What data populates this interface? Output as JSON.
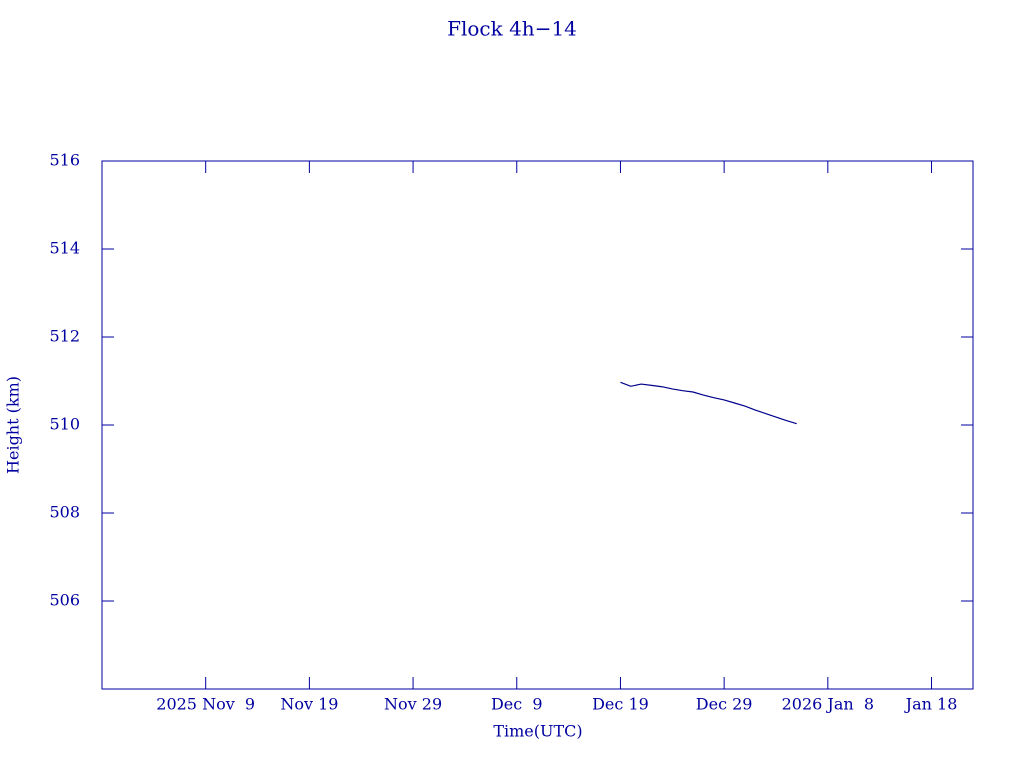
{
  "chart_data": {
    "type": "line",
    "title": "Flock 4h−14",
    "xlabel": "Time(UTC)",
    "ylabel": "Height (km)",
    "x": [
      "2025-12-19",
      "2025-12-20",
      "2025-12-21",
      "2025-12-22",
      "2025-12-23",
      "2025-12-24",
      "2025-12-25",
      "2025-12-26",
      "2025-12-27",
      "2025-12-28",
      "2025-12-29",
      "2025-12-30",
      "2025-12-31",
      "2026-01-01",
      "2026-01-02",
      "2026-01-03",
      "2026-01-04",
      "2026-01-05"
    ],
    "series": [
      {
        "name": "Height",
        "color": "#00008b",
        "values": [
          510.97,
          510.88,
          510.93,
          510.9,
          510.87,
          510.82,
          510.78,
          510.75,
          510.68,
          510.62,
          510.57,
          510.5,
          510.43,
          510.34,
          510.26,
          510.18,
          510.1,
          510.03
        ]
      }
    ],
    "xlim": [
      "2025-10-30",
      "2026-01-22"
    ],
    "xticks": [
      {
        "value": "2025-11-09",
        "label": "2025 Nov  9"
      },
      {
        "value": "2025-11-19",
        "label": "Nov 19"
      },
      {
        "value": "2025-11-29",
        "label": "Nov 29"
      },
      {
        "value": "2025-12-09",
        "label": "Dec  9"
      },
      {
        "value": "2025-12-19",
        "label": "Dec 19"
      },
      {
        "value": "2025-12-29",
        "label": "Dec 29"
      },
      {
        "value": "2026-01-08",
        "label": "2026 Jan  8"
      },
      {
        "value": "2026-01-18",
        "label": "Jan 18"
      }
    ],
    "ylim": [
      504,
      516
    ],
    "yticks": [
      506,
      508,
      510,
      512,
      514,
      516
    ]
  }
}
